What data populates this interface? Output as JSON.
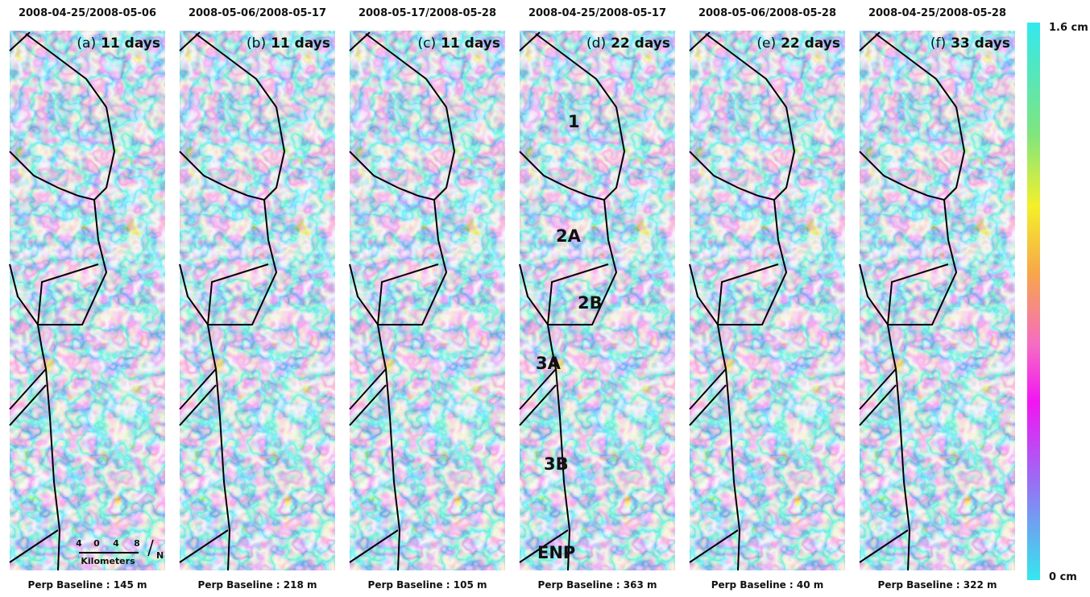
{
  "panels": [
    {
      "date": "2008-04-25/2008-05-06",
      "tag": "(a)",
      "days": "11 days",
      "baseline": "Perp Baseline : 145 m"
    },
    {
      "date": "2008-05-06/2008-05-17",
      "tag": "(b)",
      "days": "11 days",
      "baseline": "Perp Baseline : 218 m"
    },
    {
      "date": "2008-05-17/2008-05-28",
      "tag": "(c)",
      "days": "11 days",
      "baseline": "Perp Baseline : 105 m"
    },
    {
      "date": "2008-04-25/2008-05-17",
      "tag": "(d)",
      "days": "22 days",
      "baseline": "Perp Baseline : 363 m"
    },
    {
      "date": "2008-05-06/2008-05-28",
      "tag": "(e)",
      "days": "22 days",
      "baseline": "Perp Baseline : 40 m"
    },
    {
      "date": "2008-04-25/2008-05-28",
      "tag": "(f)",
      "days": "33 days",
      "baseline": "Perp Baseline : 322 m"
    }
  ],
  "regions": [
    "1",
    "2A",
    "2B",
    "3A",
    "3B",
    "ENP"
  ],
  "scale_bar": {
    "ticks": [
      "4",
      "0",
      "4",
      "8"
    ],
    "unit": "Kilometers",
    "north": "N"
  },
  "colorbar": {
    "top": "1.6 cm",
    "bottom": "0 cm"
  }
}
